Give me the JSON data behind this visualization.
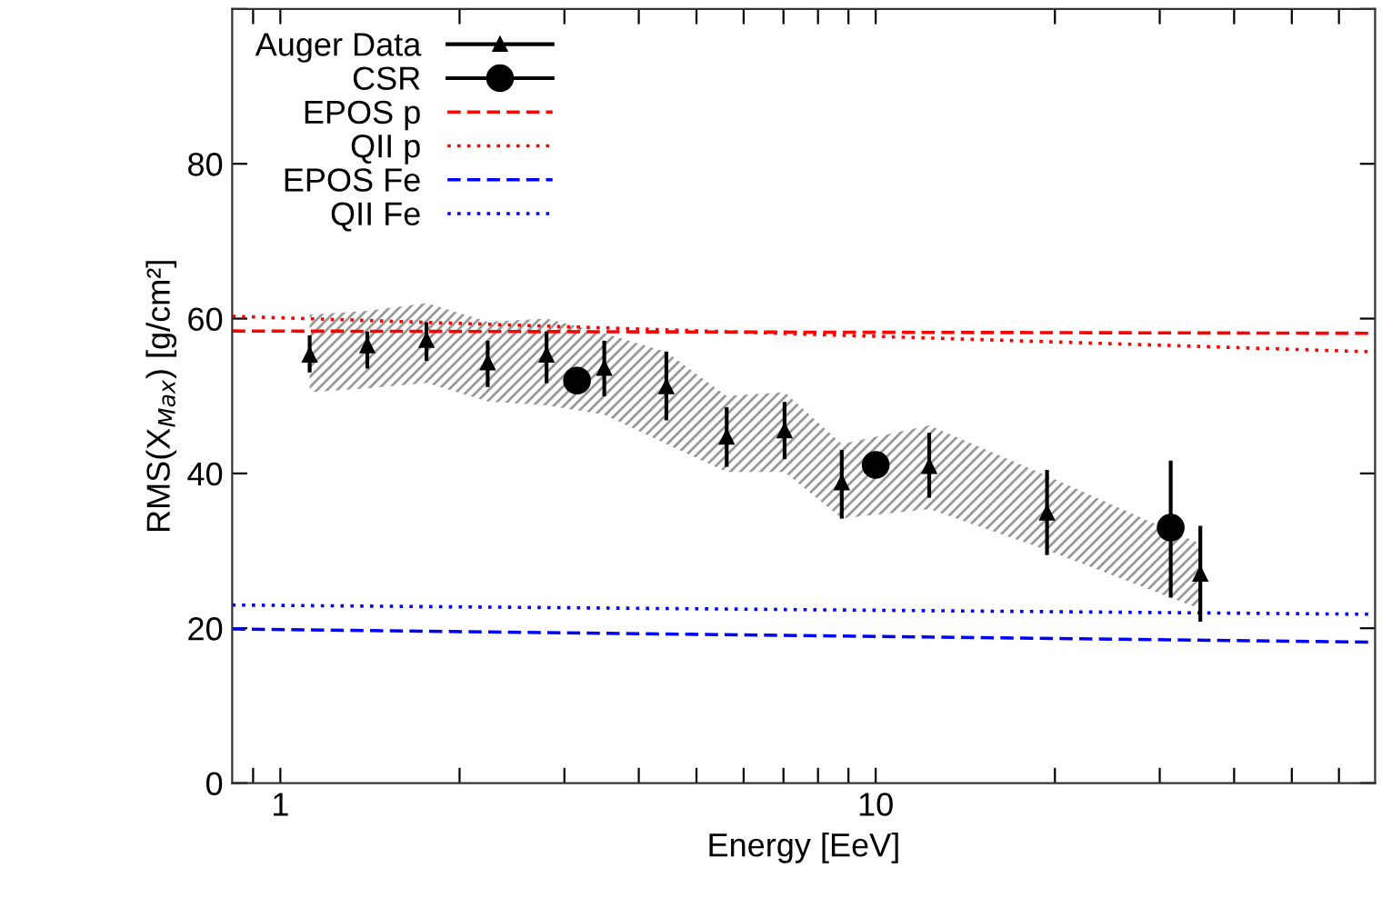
{
  "chart_data": {
    "type": "scatter",
    "xlabel": "Energy [EeV]",
    "ylabel": "RMS(X$_{Max}$) [g/cm²]",
    "log": "x",
    "xlim": [
      0.83,
      69
    ],
    "ylim": [
      0,
      100
    ],
    "xticks": [
      {
        "value": 0.9,
        "label": null
      },
      1,
      {
        "value": 2,
        "label": null
      },
      {
        "value": 3,
        "label": null
      },
      {
        "value": 4,
        "label": null
      },
      {
        "value": 5,
        "label": null
      },
      {
        "value": 6,
        "label": null
      },
      {
        "value": 7,
        "label": null
      },
      {
        "value": 8,
        "label": null
      },
      {
        "value": 9,
        "label": null
      },
      10,
      {
        "value": 20,
        "label": null
      },
      {
        "value": 30,
        "label": null
      },
      {
        "value": 40,
        "label": null
      },
      {
        "value": 50,
        "label": null
      },
      {
        "value": 60,
        "label": null
      }
    ],
    "yticks": [
      0,
      20,
      40,
      60,
      80,
      {
        "value": 100,
        "label": null
      }
    ],
    "grid": false,
    "legend": "top left",
    "series": [
      {
        "name": "Auger Data",
        "marker": "triangle",
        "color": "#000000",
        "x": [
          1.12,
          1.4,
          1.76,
          2.23,
          2.8,
          3.5,
          4.45,
          5.62,
          7.03,
          8.77,
          12.3,
          19.4,
          35.1
        ],
        "values": [
          55.3,
          56.5,
          57.2,
          54.3,
          55.3,
          53.6,
          51.2,
          44.7,
          45.5,
          38.8,
          40.9,
          34.9,
          27.0
        ],
        "errors": [
          [
            53.3,
            57.6
          ],
          [
            53.8,
            58.1
          ],
          [
            54.8,
            59.3
          ],
          [
            51.4,
            56.9
          ],
          [
            51.9,
            58.1
          ],
          [
            50.2,
            56.9
          ],
          [
            47.1,
            55.5
          ],
          [
            41.1,
            48.3
          ],
          [
            42.1,
            49.0
          ],
          [
            34.4,
            42.8
          ],
          [
            37.1,
            45.0
          ],
          [
            29.7,
            40.2
          ],
          [
            21.1,
            33.0
          ]
        ],
        "lower": [
          50.5,
          51.0,
          51.7,
          49.3,
          48.8,
          47.6,
          43.8,
          40.2,
          40.2,
          34.2,
          35.4,
          30.1,
          22.5
        ],
        "upper": [
          60.5,
          61.0,
          62.0,
          59.6,
          60.0,
          58.1,
          55.7,
          50.0,
          50.5,
          43.8,
          46.2,
          39.7,
          30.9
        ]
      },
      {
        "name": "CSR",
        "marker": "circle",
        "color": "#000000",
        "x": [
          3.15,
          10,
          31.3
        ],
        "values": [
          52,
          41.1,
          33.0
        ],
        "errors": [
          null,
          null,
          [
            24.2,
            41.4
          ]
        ]
      },
      {
        "name": "EPOS p",
        "type": "line",
        "line_style": "dashed",
        "color": "#ff0000",
        "x": [
          0.83,
          69
        ],
        "values": [
          58.4,
          58.1
        ]
      },
      {
        "name": "QII p",
        "type": "line",
        "line_style": "dotted",
        "color": "#ff0000",
        "x": [
          0.83,
          69
        ],
        "values": [
          60.3,
          55.7
        ]
      },
      {
        "name": "EPOS Fe",
        "type": "line",
        "line_style": "dashed",
        "color": "#0000ff",
        "x": [
          0.83,
          69
        ],
        "values": [
          19.9,
          18.2
        ]
      },
      {
        "name": "QII Fe",
        "type": "line",
        "line_style": "dotted",
        "color": "#0000ff",
        "x": [
          0.83,
          69
        ],
        "values": [
          23.0,
          21.8
        ]
      }
    ]
  }
}
